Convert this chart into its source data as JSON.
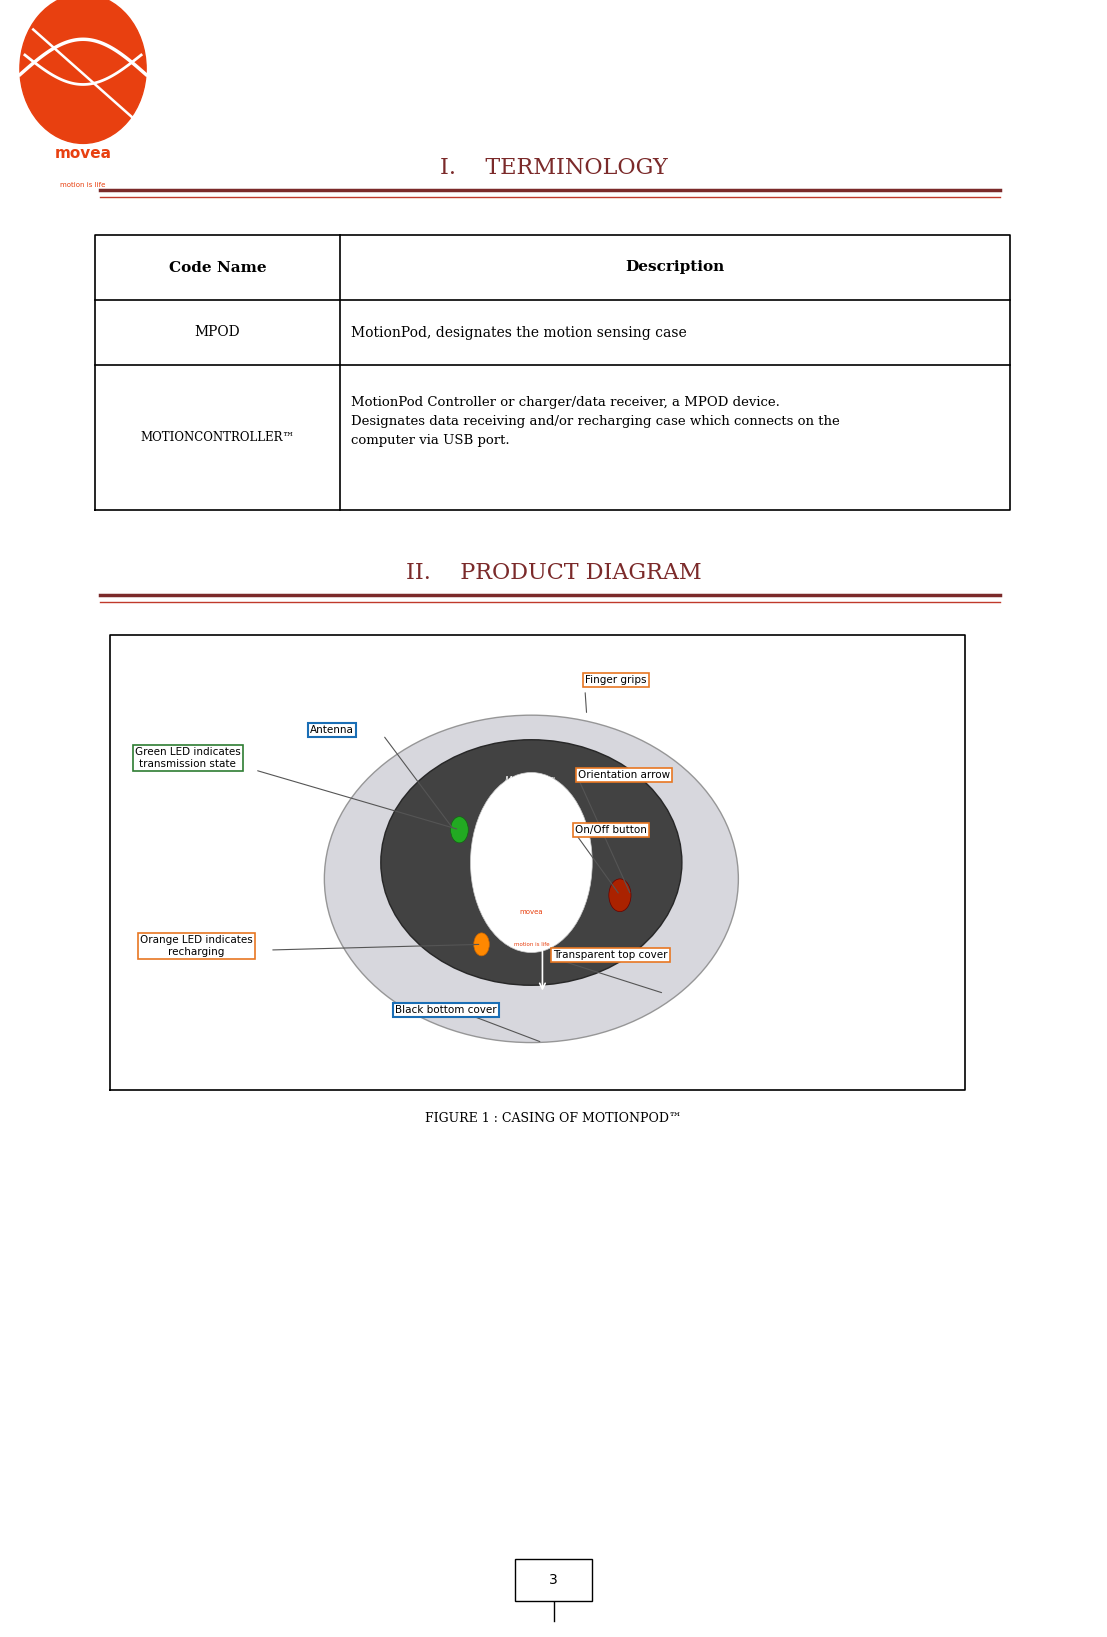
{
  "page_width": 11.07,
  "page_height": 16.37,
  "background_color": "#ffffff",
  "logo_text": "movea",
  "logo_tagline": "motion is life",
  "logo_color": "#e84010",
  "section1_title": "I.  TERMINOLOGY",
  "section2_title": "II.  PRODUCT DIAGRAM",
  "section_title_color": "#7b2a2a",
  "section_line_color1": "#7b2a2a",
  "section_line_color2": "#c0392b",
  "table_header_col1": "Code Name",
  "table_header_col2": "Description",
  "table_row1_col1": "MPOD",
  "table_row1_col2": "MotionPod, designates the motion sensing case",
  "table_row2_col1": "MOTIONCONTROLLER™",
  "table_row2_col2": "MotionPod Controller or charger/data receiver, a MPOD device.\nDesignates data receiving and/or recharging case which connects on the\ncomputer via USB port.",
  "figure_caption": "FIGURE 1 : CASING OF MOTIONPOD™",
  "page_number": "3",
  "annotations": [
    {
      "label": "Finger grips",
      "color": "#e87722",
      "box_color": "#e87722"
    },
    {
      "label": "Antenna",
      "color": "#1a6eb5",
      "box_color": "#1a6eb5"
    },
    {
      "label": "Orientation arrow",
      "color": "#e87722",
      "box_color": "#e87722"
    },
    {
      "label": "On/Off button",
      "color": "#e87722",
      "box_color": "#e87722"
    },
    {
      "label": "Green LED indicates\ntransmission state",
      "color": "#2e7d32",
      "box_color": "#2e7d32"
    },
    {
      "label": "Orange LED indicates\nrecharging",
      "color": "#e87722",
      "box_color": "#e87722"
    },
    {
      "label": "Transparent top cover",
      "color": "#e87722",
      "box_color": "#e87722"
    },
    {
      "label": "Black bottom cover",
      "color": "#1a6eb5",
      "box_color": "#1a6eb5"
    }
  ]
}
